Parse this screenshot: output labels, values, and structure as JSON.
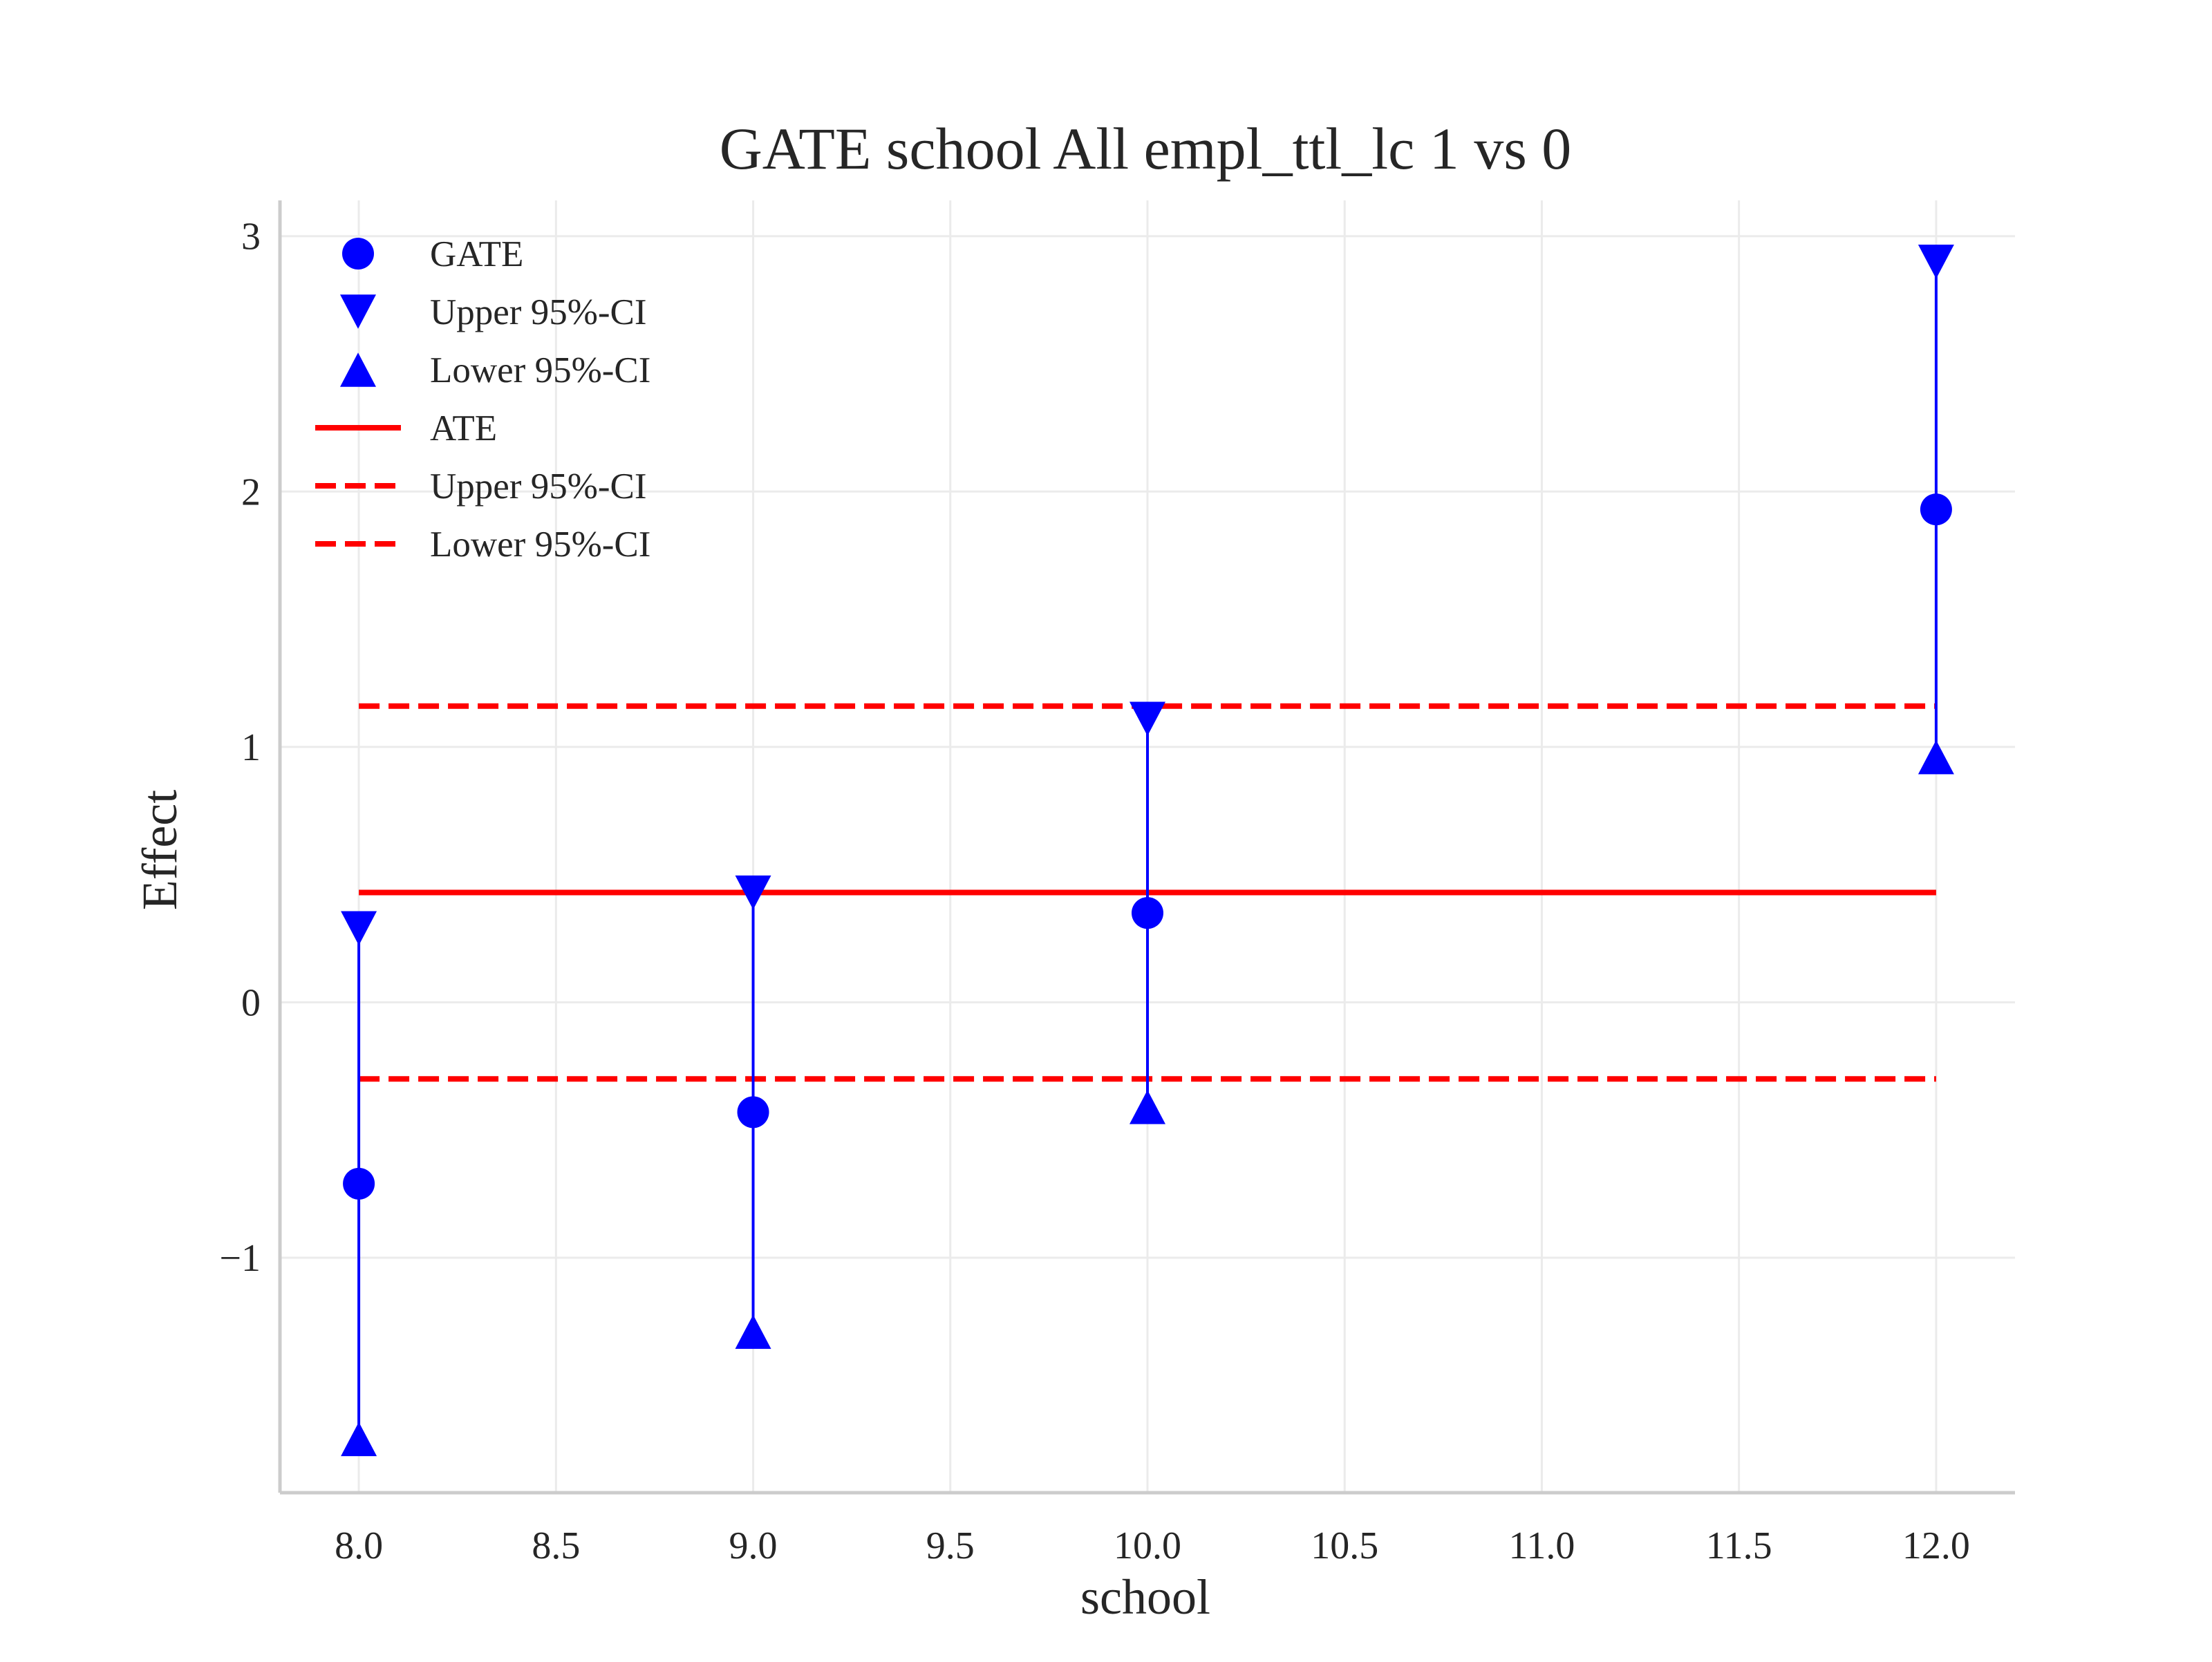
{
  "chart_data": {
    "type": "scatter",
    "title": "GATE school All empl_ttl_lc  1 vs 0",
    "xlabel": "school",
    "ylabel": "Effect",
    "xlim": [
      7.8,
      12.2
    ],
    "ylim": [
      -1.92,
      3.14
    ],
    "x_ticks": [
      8.0,
      8.5,
      9.0,
      9.5,
      10.0,
      10.5,
      11.0,
      11.5,
      12.0
    ],
    "y_ticks": [
      -1,
      0,
      1,
      2,
      3
    ],
    "x_tick_labels": [
      "8.0",
      "8.5",
      "9.0",
      "9.5",
      "10.0",
      "10.5",
      "11.0",
      "11.5",
      "12.0"
    ],
    "y_tick_labels": [
      "−1",
      "0",
      "1",
      "2",
      "3"
    ],
    "grid": true,
    "legend_position": "upper-left",
    "x": [
      8.0,
      9.0,
      10.0,
      12.0
    ],
    "gate": [
      -0.71,
      -0.43,
      0.35,
      1.93
    ],
    "upper_ci": [
      0.29,
      0.43,
      1.11,
      2.9
    ],
    "lower_ci": [
      -1.71,
      -1.29,
      -0.41,
      0.96
    ],
    "ate": 0.43,
    "ate_upper_ci": 1.16,
    "ate_lower_ci": -0.3,
    "colors": {
      "gate": "#0000ff",
      "ate": "#ff0000",
      "grid": "#ebebeb",
      "spine": "#cccccc"
    },
    "legend": [
      {
        "label": "GATE",
        "marker": "circle",
        "color": "#0000ff"
      },
      {
        "label": "Upper 95%-CI",
        "marker": "triangle-down",
        "color": "#0000ff"
      },
      {
        "label": "Lower 95%-CI",
        "marker": "triangle-up",
        "color": "#0000ff"
      },
      {
        "label": "ATE",
        "marker": "solid-line",
        "color": "#ff0000"
      },
      {
        "label": "Upper 95%-CI",
        "marker": "dashed-line",
        "color": "#ff0000"
      },
      {
        "label": "Lower 95%-CI",
        "marker": "dashed-line",
        "color": "#ff0000"
      }
    ]
  }
}
